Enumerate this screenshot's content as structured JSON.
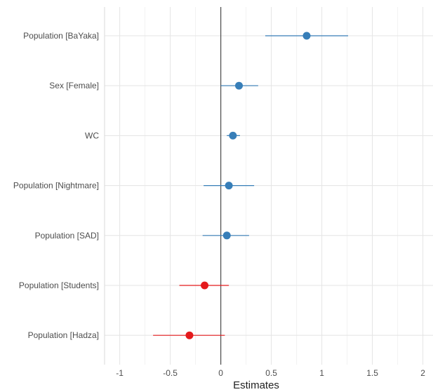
{
  "chart_data": {
    "type": "forest",
    "xlabel": "Estimates",
    "xlim": [
      -1.15,
      2.1
    ],
    "x_ticks": [
      -1,
      -0.5,
      0,
      0.5,
      1,
      1.5,
      2
    ],
    "x_tick_labels": [
      "-1",
      "-0.5",
      "0",
      "0.5",
      "1",
      "1.5",
      "2"
    ],
    "grid": true,
    "reference_line": 0,
    "colors": {
      "positive": "#377eb8",
      "negative": "#e41a1c"
    },
    "series": [
      {
        "label": "Population [BaYaka]",
        "estimate": 0.85,
        "ci_low": 0.44,
        "ci_high": 1.26
      },
      {
        "label": "Sex [Female]",
        "estimate": 0.18,
        "ci_low": 0.0,
        "ci_high": 0.37
      },
      {
        "label": "WC",
        "estimate": 0.12,
        "ci_low": 0.06,
        "ci_high": 0.19
      },
      {
        "label": "Population [Nightmare]",
        "estimate": 0.08,
        "ci_low": -0.17,
        "ci_high": 0.33
      },
      {
        "label": "Population [SAD]",
        "estimate": 0.06,
        "ci_low": -0.18,
        "ci_high": 0.28
      },
      {
        "label": "Population [Students]",
        "estimate": -0.16,
        "ci_low": -0.41,
        "ci_high": 0.08
      },
      {
        "label": "Population [Hadza]",
        "estimate": -0.31,
        "ci_low": -0.67,
        "ci_high": 0.04
      }
    ]
  }
}
